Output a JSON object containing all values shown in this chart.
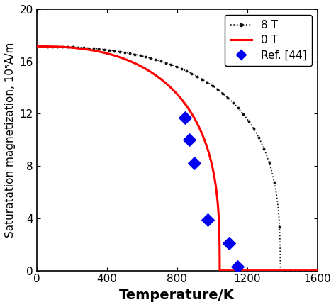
{
  "title": "",
  "xlabel": "Temperature/K",
  "ylabel": "Saturatation magnetization, 10⁵A/m",
  "xlim": [
    0,
    1600
  ],
  "ylim": [
    0,
    20
  ],
  "xticks": [
    0,
    400,
    800,
    1200,
    1600
  ],
  "yticks": [
    0,
    4,
    8,
    12,
    16,
    20
  ],
  "T_curie_0T": 1043,
  "T_curie_8T": 1388,
  "Ms0": 17.15,
  "beta_0T_alpha": 2.5,
  "beta_0T_beta": 0.33,
  "beta_8T_alpha": 2.5,
  "beta_8T_beta": 0.33,
  "line_8T_color": "#111111",
  "line_0T_color": "#ff0000",
  "ref_color": "#0000ee",
  "ref_points_T": [
    845,
    870,
    900,
    975,
    1095,
    1145
  ],
  "ref_points_Ms": [
    11.7,
    10.0,
    8.2,
    3.9,
    2.1,
    0.3
  ],
  "legend_labels": [
    "8 T",
    "0 T",
    "Ref. [44]"
  ],
  "xlabel_fontsize": 14,
  "ylabel_fontsize": 11,
  "tick_fontsize": 11,
  "legend_fontsize": 11,
  "marker_count": 55
}
